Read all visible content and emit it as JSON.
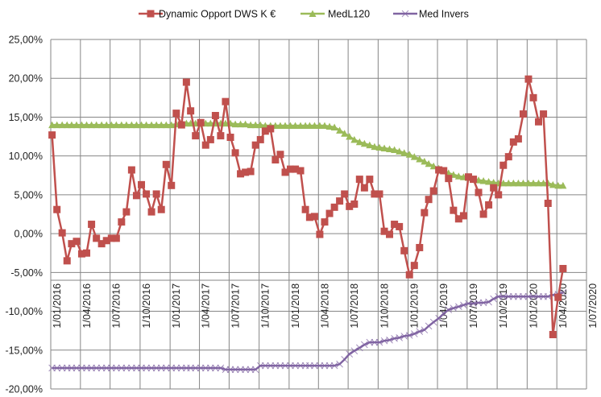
{
  "chart_data": {
    "type": "line",
    "title": "",
    "xlabel": "",
    "ylabel": "",
    "ylim": [
      -0.2,
      0.25
    ],
    "y_tick_step": 0.05,
    "y_tick_labels": [
      "25,00%",
      "20,00%",
      "15,00%",
      "10,00%",
      "5,00%",
      "0,00%",
      "-5,00%",
      "-10,00%",
      "-15,00%",
      "-20,00%"
    ],
    "x_axis_crosses_at": -0.06,
    "x_tick_labels": [
      "1/01/2016",
      "1/04/2016",
      "1/07/2016",
      "1/10/2016",
      "1/01/2017",
      "1/04/2017",
      "1/07/2017",
      "1/10/2017",
      "1/01/2018",
      "1/04/2018",
      "1/07/2018",
      "1/10/2018",
      "1/01/2019",
      "1/04/2019",
      "1/07/2019",
      "1/10/2019",
      "1/01/2020",
      "1/04/2020",
      "1/07/2020"
    ],
    "x_ticks": [
      "2016-01-01",
      "2016-04-01",
      "2016-07-01",
      "2016-10-01",
      "2017-01-01",
      "2017-04-01",
      "2017-07-01",
      "2017-10-01",
      "2018-01-01",
      "2018-04-01",
      "2018-07-01",
      "2018-10-01",
      "2019-01-01",
      "2019-04-01",
      "2019-07-01",
      "2019-10-01",
      "2020-01-01",
      "2020-04-01",
      "2020-07-01"
    ],
    "grid": true,
    "legend_position": "top",
    "x": [
      "2016-01-05",
      "2016-01-20",
      "2016-02-05",
      "2016-02-20",
      "2016-03-05",
      "2016-03-20",
      "2016-04-05",
      "2016-04-20",
      "2016-05-05",
      "2016-05-20",
      "2016-06-05",
      "2016-06-20",
      "2016-07-05",
      "2016-07-20",
      "2016-08-05",
      "2016-08-20",
      "2016-09-05",
      "2016-09-20",
      "2016-10-05",
      "2016-10-20",
      "2016-11-05",
      "2016-11-20",
      "2016-12-05",
      "2016-12-20",
      "2017-01-05",
      "2017-01-20",
      "2017-02-05",
      "2017-02-20",
      "2017-03-05",
      "2017-03-20",
      "2017-04-05",
      "2017-04-20",
      "2017-05-05",
      "2017-05-20",
      "2017-06-05",
      "2017-06-20",
      "2017-07-05",
      "2017-07-20",
      "2017-08-05",
      "2017-08-20",
      "2017-09-05",
      "2017-09-20",
      "2017-10-05",
      "2017-10-20",
      "2017-11-05",
      "2017-11-20",
      "2017-12-05",
      "2017-12-20",
      "2018-01-05",
      "2018-01-20",
      "2018-02-05",
      "2018-02-20",
      "2018-03-05",
      "2018-03-20",
      "2018-04-05",
      "2018-04-20",
      "2018-05-05",
      "2018-05-20",
      "2018-06-05",
      "2018-06-20",
      "2018-07-05",
      "2018-07-20",
      "2018-08-05",
      "2018-08-20",
      "2018-09-05",
      "2018-09-20",
      "2018-10-05",
      "2018-10-20",
      "2018-11-05",
      "2018-11-20",
      "2018-12-05",
      "2018-12-20",
      "2019-01-05",
      "2019-01-20",
      "2019-02-05",
      "2019-02-20",
      "2019-03-05",
      "2019-03-20",
      "2019-04-05",
      "2019-04-20",
      "2019-05-05",
      "2019-05-20",
      "2019-06-05",
      "2019-06-20",
      "2019-07-05",
      "2019-07-20",
      "2019-08-05",
      "2019-08-20",
      "2019-09-05",
      "2019-09-20",
      "2019-10-05",
      "2019-10-20",
      "2019-11-05",
      "2019-11-20",
      "2019-12-05",
      "2019-12-20",
      "2020-01-05",
      "2020-01-20",
      "2020-02-05",
      "2020-02-20",
      "2020-03-05",
      "2020-03-20",
      "2020-04-05",
      "2020-04-20"
    ],
    "series": [
      {
        "name": "Dynamic Opport DWS K €",
        "color": "#c0504d",
        "marker": "square",
        "values": [
          12.7,
          3.1,
          0.1,
          -3.5,
          -1.3,
          -1.0,
          -2.6,
          -2.5,
          1.2,
          -0.6,
          -1.3,
          -0.9,
          -0.6,
          -0.6,
          1.5,
          2.8,
          8.2,
          4.9,
          6.3,
          5.1,
          2.8,
          5.1,
          3.1,
          8.9,
          6.2,
          15.5,
          14.0,
          19.5,
          15.8,
          12.6,
          14.3,
          11.4,
          12.1,
          15.2,
          12.6,
          17.0,
          12.4,
          10.4,
          7.7,
          7.9,
          8.0,
          11.4,
          12.1,
          13.2,
          13.5,
          9.5,
          10.2,
          7.9,
          8.3,
          8.3,
          8.1,
          3.1,
          2.1,
          2.2,
          -0.1,
          1.5,
          2.6,
          3.4,
          4.2,
          5.1,
          3.5,
          3.8,
          7.0,
          5.9,
          7.0,
          5.1,
          5.1,
          0.3,
          -0.1,
          1.2,
          0.9,
          -2.2,
          -5.3,
          -4.1,
          -1.8,
          2.7,
          4.4,
          5.5,
          8.2,
          8.1,
          7.1,
          3.0,
          1.9,
          2.3,
          7.3,
          7.0,
          5.3,
          2.5,
          3.7,
          5.9,
          5.0,
          8.8,
          9.9,
          11.8,
          12.2,
          15.4,
          19.9,
          17.5,
          14.4,
          15.4,
          3.9,
          -13.0,
          -8.2,
          -4.5
        ]
      },
      {
        "name": "MedL120",
        "color": "#9bbb59",
        "marker": "triangle",
        "values": [
          14.0,
          14.0,
          14.0,
          14.0,
          14.0,
          14.0,
          14.0,
          14.0,
          14.0,
          14.0,
          14.0,
          14.0,
          14.0,
          14.0,
          14.0,
          14.0,
          14.0,
          14.0,
          14.0,
          14.0,
          14.0,
          14.0,
          14.0,
          14.0,
          14.0,
          14.1,
          14.1,
          14.2,
          14.2,
          14.2,
          14.2,
          14.2,
          14.2,
          14.2,
          14.2,
          14.2,
          14.2,
          14.1,
          14.1,
          14.1,
          14.0,
          14.0,
          14.0,
          13.9,
          13.9,
          13.9,
          13.9,
          13.9,
          13.9,
          13.9,
          13.9,
          13.9,
          13.9,
          13.9,
          13.9,
          13.9,
          13.8,
          13.7,
          13.3,
          12.9,
          12.5,
          12.1,
          11.8,
          11.6,
          11.4,
          11.2,
          11.1,
          11.0,
          10.9,
          10.8,
          10.6,
          10.4,
          10.2,
          9.9,
          9.6,
          9.3,
          9.0,
          8.7,
          8.4,
          8.1,
          7.8,
          7.6,
          7.4,
          7.3,
          7.2,
          7.0,
          6.9,
          6.8,
          6.7,
          6.6,
          6.5,
          6.5,
          6.5,
          6.5,
          6.5,
          6.5,
          6.5,
          6.5,
          6.5,
          6.5,
          6.5,
          6.3,
          6.2,
          6.2
        ]
      },
      {
        "name": "Med Invers",
        "color": "#8064a2",
        "marker": "x",
        "values": [
          -17.3,
          -17.3,
          -17.3,
          -17.3,
          -17.3,
          -17.3,
          -17.3,
          -17.3,
          -17.3,
          -17.3,
          -17.3,
          -17.3,
          -17.3,
          -17.3,
          -17.3,
          -17.3,
          -17.3,
          -17.3,
          -17.3,
          -17.3,
          -17.3,
          -17.3,
          -17.3,
          -17.3,
          -17.3,
          -17.3,
          -17.3,
          -17.3,
          -17.3,
          -17.3,
          -17.3,
          -17.3,
          -17.3,
          -17.3,
          -17.3,
          -17.5,
          -17.5,
          -17.5,
          -17.5,
          -17.5,
          -17.5,
          -17.5,
          -17.0,
          -17.0,
          -17.0,
          -17.0,
          -17.0,
          -17.0,
          -17.0,
          -17.0,
          -17.0,
          -17.0,
          -17.0,
          -17.0,
          -17.0,
          -17.0,
          -17.0,
          -17.0,
          -16.8,
          -16.2,
          -15.5,
          -15.1,
          -14.7,
          -14.3,
          -14.0,
          -14.0,
          -14.0,
          -13.8,
          -13.7,
          -13.5,
          -13.4,
          -13.2,
          -13.1,
          -12.9,
          -12.6,
          -12.4,
          -11.9,
          -11.4,
          -10.9,
          -10.3,
          -9.8,
          -9.6,
          -9.4,
          -9.2,
          -9.0,
          -9.0,
          -8.9,
          -8.9,
          -8.8,
          -8.4,
          -8.1,
          -8.1,
          -8.1,
          -8.1,
          -8.1,
          -8.1,
          -8.1,
          -8.1,
          -8.1,
          -8.1,
          -8.1,
          -7.9,
          -7.8,
          -7.6
        ]
      }
    ],
    "value_unit": "percent"
  }
}
